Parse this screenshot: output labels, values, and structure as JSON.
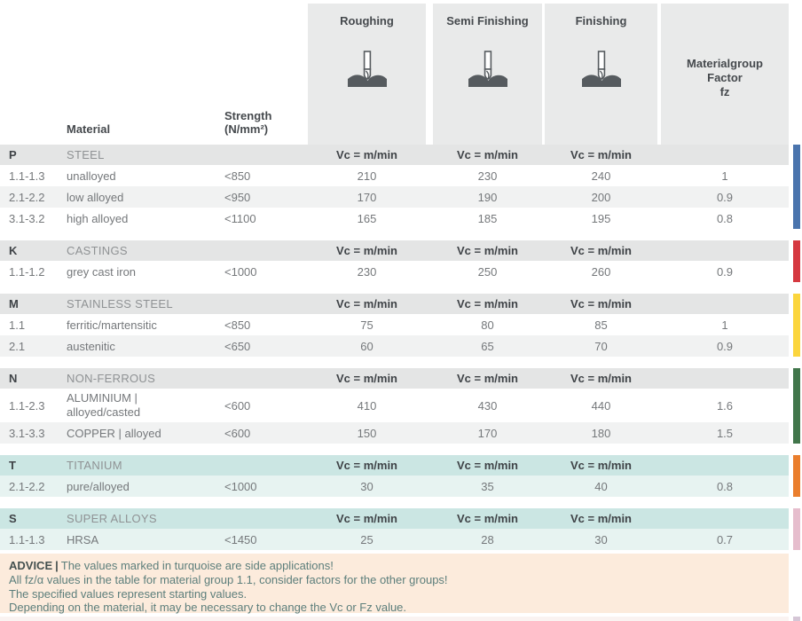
{
  "header": {
    "material_label": "Material",
    "strength_line1": "Strength",
    "strength_line2": "(N/mm²)",
    "columns": [
      {
        "label": "Roughing"
      },
      {
        "label": "Semi Finishing"
      },
      {
        "label": "Finishing"
      }
    ],
    "factor_line1": "Materialgroup",
    "factor_line2": "Factor",
    "factor_line3": "fz"
  },
  "vc_label": "Vc = m/min",
  "colors": {
    "top_column_bg": "#e9eaea",
    "section_header_bg": "#e4e5e5",
    "stripe_bg": "#f1f2f2",
    "teal_header_bg": "#cbe6e3",
    "teal_row_bg": "#e7f3f1",
    "advice_bg": "#fcebdc"
  },
  "sections": [
    {
      "code": "P",
      "name": "STEEL",
      "theme": "gray",
      "bar_color": "#4a74ad",
      "rows": [
        {
          "code": "1.1-1.3",
          "material": "unalloyed",
          "strength": "<850",
          "roughing": "210",
          "semi": "230",
          "finishing": "240",
          "factor": "1"
        },
        {
          "code": "2.1-2.2",
          "material": "low alloyed",
          "strength": "<950",
          "roughing": "170",
          "semi": "190",
          "finishing": "200",
          "factor": "0.9"
        },
        {
          "code": "3.1-3.2",
          "material": "high alloyed",
          "strength": "<1100",
          "roughing": "165",
          "semi": "185",
          "finishing": "195",
          "factor": "0.8"
        }
      ]
    },
    {
      "code": "K",
      "name": "CASTINGS",
      "theme": "gray",
      "bar_color": "#d53840",
      "rows": [
        {
          "code": "1.1-1.2",
          "material": "grey cast iron",
          "strength": "<1000",
          "roughing": "230",
          "semi": "250",
          "finishing": "260",
          "factor": "0.9"
        }
      ]
    },
    {
      "code": "M",
      "name": "STAINLESS STEEL",
      "theme": "gray",
      "bar_color": "#fbd53d",
      "rows": [
        {
          "code": "1.1",
          "material": "ferritic/martensitic",
          "strength": "<850",
          "roughing": "75",
          "semi": "80",
          "finishing": "85",
          "factor": "1"
        },
        {
          "code": "2.1",
          "material": "austenitic",
          "strength": "<650",
          "roughing": "60",
          "semi": "65",
          "finishing": "70",
          "factor": "0.9"
        }
      ]
    },
    {
      "code": "N",
      "name": "NON-FERROUS",
      "theme": "gray",
      "bar_color": "#41764b",
      "rows": [
        {
          "code": "1.1-2.3",
          "material": "ALUMINIUM |",
          "material2": "alloyed/casted",
          "strength": "<600",
          "roughing": "410",
          "semi": "430",
          "finishing": "440",
          "factor": "1.6"
        },
        {
          "code": "3.1-3.3",
          "material": "COPPER | alloyed",
          "strength": "<600",
          "roughing": "150",
          "semi": "170",
          "finishing": "180",
          "factor": "1.5"
        }
      ]
    },
    {
      "code": "T",
      "name": "TITANIUM",
      "theme": "teal",
      "bar_color": "#ea7e2d",
      "rows": [
        {
          "code": "2.1-2.2",
          "material": "pure/alloyed",
          "strength": "<1000",
          "roughing": "30",
          "semi": "35",
          "finishing": "40",
          "factor": "0.8"
        }
      ]
    },
    {
      "code": "S",
      "name": "SUPER ALLOYS",
      "theme": "teal",
      "bar_color": "#e6bdcd",
      "rows": [
        {
          "code": "1.1-1.3",
          "material": "HRSA",
          "strength": "<1450",
          "roughing": "25",
          "semi": "28",
          "finishing": "30",
          "factor": "0.7"
        }
      ]
    }
  ],
  "advice": {
    "label": "ADVICE",
    "separator": "|",
    "lines": [
      "The values marked in turquoise are side applications!",
      "All fz/α values in the table for material group 1.1, consider factors for the other groups!",
      "The specified values represent starting values.",
      "Depending on the material, it may be necessary to change the Vc or Fz value."
    ]
  }
}
